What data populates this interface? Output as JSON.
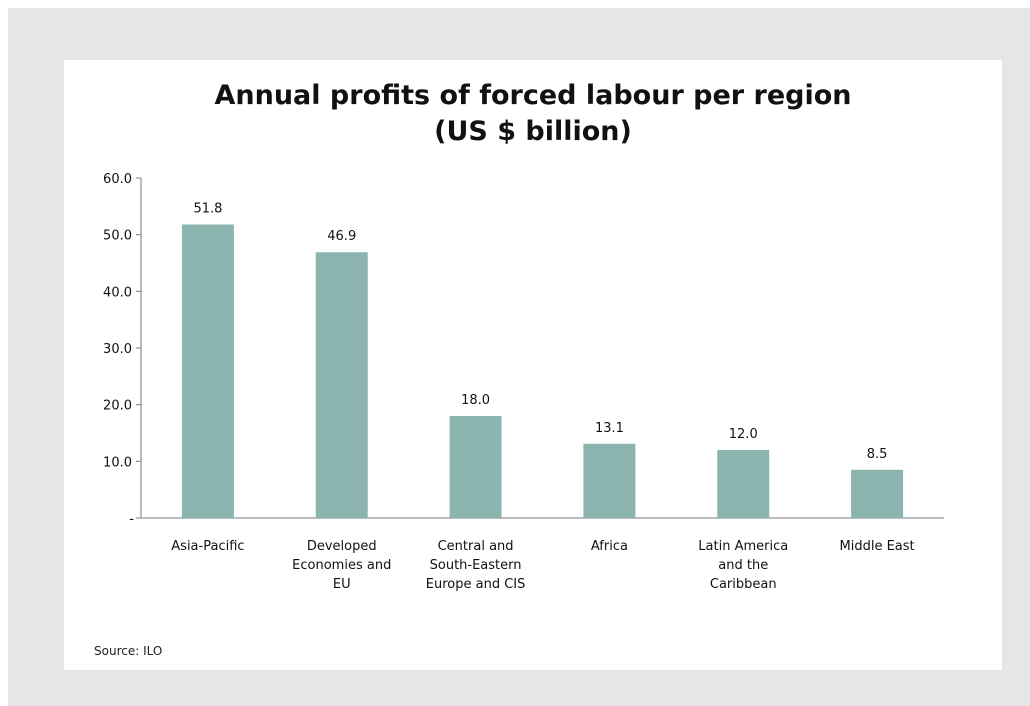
{
  "chart_data": {
    "type": "bar",
    "title_lines": [
      "Annual profits of forced labour per region",
      "(US $ billion)"
    ],
    "categories": [
      [
        "Asia-Pacific"
      ],
      [
        "Developed",
        "Economies and",
        "EU"
      ],
      [
        "Central and",
        "South-Eastern",
        "Europe and CIS"
      ],
      [
        "Africa"
      ],
      [
        "Latin America",
        "and the",
        "Caribbean"
      ],
      [
        "Middle East"
      ]
    ],
    "values": [
      51.8,
      46.9,
      18.0,
      13.1,
      12.0,
      8.5
    ],
    "value_labels": [
      "51.8",
      "46.9",
      "18.0",
      "13.1",
      "12.0",
      "8.5"
    ],
    "yticks": [
      "-",
      "10.0",
      "20.0",
      "30.0",
      "40.0",
      "50.0",
      "60.0"
    ],
    "ylim": [
      0,
      60
    ],
    "xlabel": "",
    "ylabel": "",
    "grid": false,
    "bar_color": "#8db5b0"
  },
  "source": "Source: ILO"
}
